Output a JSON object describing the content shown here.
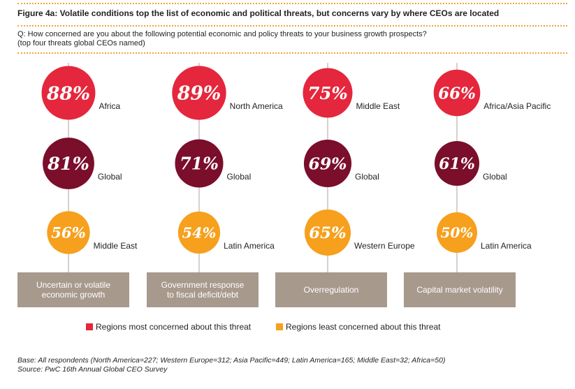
{
  "chart_data": {
    "type": "scatter",
    "title": "Figure 4a: Volatile conditions top the list of economic and political threats, but concerns vary by where CEOs are located",
    "question": "Q: How concerned are you about the following potential economic and policy threats to your business growth prospects?",
    "note": "(top four threats global CEOs named)",
    "unit": "%",
    "categories": [
      "Uncertain or volatile economic growth",
      "Government response to fiscal deficit/debt",
      "Overregulation",
      "Capital market volatility"
    ],
    "series": [
      {
        "name": "Regions most concerned about this threat",
        "values": [
          88,
          89,
          75,
          66
        ],
        "regions": [
          "Africa",
          "North America",
          "Middle East",
          "Africa/Asia Pacific"
        ],
        "color": "#e4273c"
      },
      {
        "name": "Global",
        "values": [
          81,
          71,
          69,
          61
        ],
        "color": "#7a0e2b"
      },
      {
        "name": "Regions least concerned about this threat",
        "values": [
          56,
          54,
          65,
          50
        ],
        "regions": [
          "Middle East",
          "Latin America",
          "Western Europe",
          "Latin America"
        ],
        "color": "#f6a01d"
      }
    ],
    "legend_position": "bottom"
  },
  "footer": {
    "base": "Base: All respondents (North America=227; Western Europe=312; Asia Pacific=449; Latin America=165; Middle East=32; Africa=50)",
    "source": "Source: PwC 16th Annual Global CEO Survey"
  },
  "colors": {
    "divider": "#f0a43a",
    "category_box": "#a8998d",
    "connector": "#c9c2bb"
  }
}
